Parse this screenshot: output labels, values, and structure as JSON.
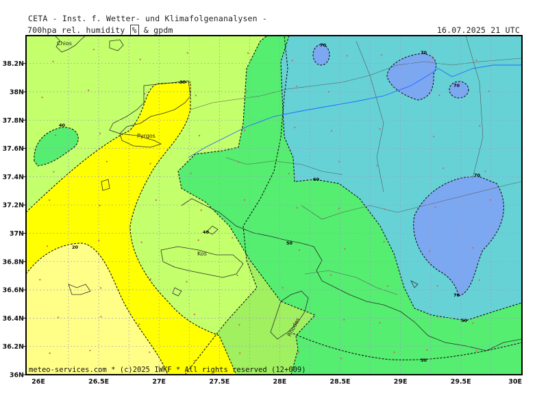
{
  "header": {
    "org": "CETA - Inst. f. Wetter- und Klimafolgenanalysen -",
    "product_prefix": "700hpa rel. humidity",
    "unit": "%",
    "product_suffix": "& gpdm",
    "datetime": "16.07.2025 21 UTC"
  },
  "map": {
    "lat_ticks": [
      "36N",
      "36.2N",
      "36.4N",
      "36.6N",
      "36.8N",
      "37N",
      "37.2N",
      "37.4N",
      "37.6N",
      "37.8N",
      "38N",
      "38.2N"
    ],
    "lon_ticks": [
      "26E",
      "26.5E",
      "27E",
      "27.5E",
      "28E",
      "28.5E",
      "29E",
      "29.5E",
      "30E"
    ],
    "contour_labels": [
      "20",
      "30",
      "40",
      "50",
      "60",
      "70"
    ],
    "places": [
      "Chios",
      "Pyrgos",
      "Kos",
      "Rhodos"
    ],
    "colors": {
      "rh_20_30": "#ffff88",
      "rh_30_40": "#ffff00",
      "rh_40_50": "#c4ff6c",
      "rh_50_60": "#a0f060",
      "rh_60_70": "#55ee70",
      "rh_70_80": "#66d2d6",
      "rh_80_90": "#7ca8f2",
      "grid": "#9a9acc",
      "river": "#2266ff"
    }
  },
  "footer": {
    "credit": "meteo-services.com * (c)2025 IWKF * All rights reserved (12+009)"
  }
}
